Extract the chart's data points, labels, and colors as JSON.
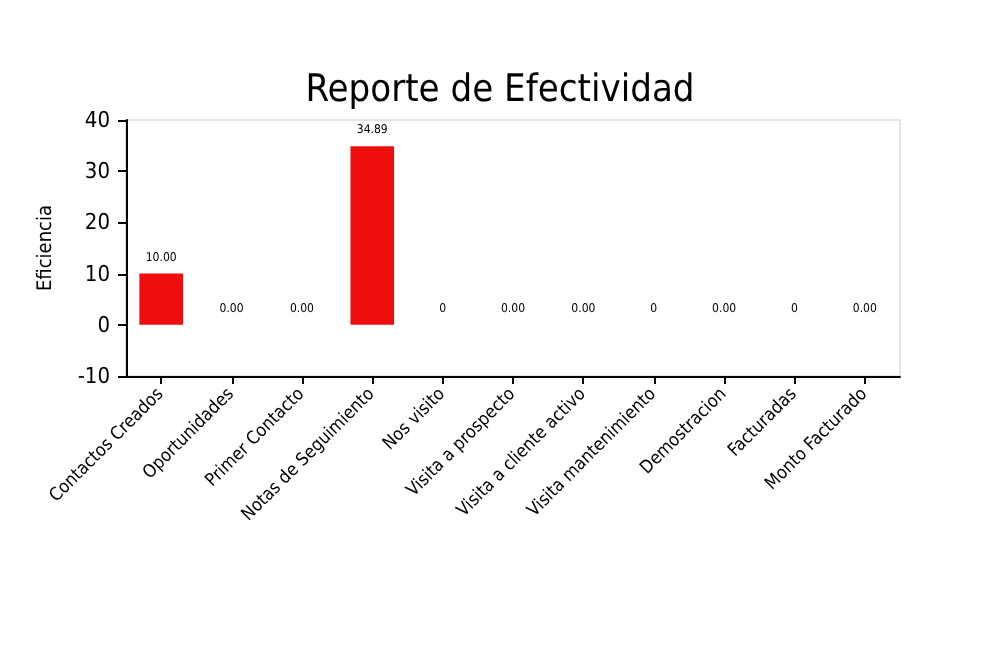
{
  "chart_data": {
    "type": "bar",
    "title": "Reporte de Efectividad",
    "ylabel": "Eficiencia",
    "categories": [
      "Contactos Creados",
      "Oportunidades",
      "Primer Contacto",
      "Notas de Seguimiento",
      "Nos visito",
      "Visita a prospecto",
      "Visita a cliente activo",
      "Visita mantenimiento",
      "Demostracion",
      "Facturadas",
      "Monto Facturado"
    ],
    "values": [
      10,
      0,
      0,
      34.89,
      0,
      0,
      0,
      0,
      0,
      0,
      0
    ],
    "value_labels": [
      "10.00",
      "0.00",
      "0.00",
      "34.89",
      "0",
      "0.00",
      "0.00",
      "0",
      "0.00",
      "0",
      "0.00"
    ],
    "color": "#f00d0d",
    "ylim": [
      -10,
      40
    ],
    "yticks": [
      -10,
      0,
      10,
      20,
      30,
      40
    ],
    "grid": false
  }
}
